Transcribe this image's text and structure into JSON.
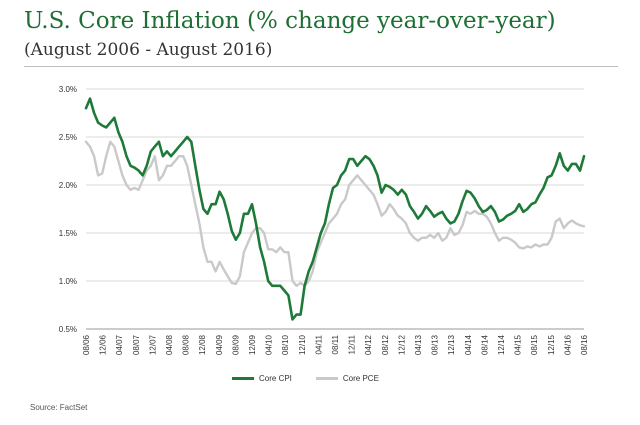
{
  "title": "U.S. Core Inflation (% change year-over-year)",
  "subtitle": "(August 2006 - August 2016)",
  "source": "Source: FactSet",
  "chart_data": {
    "type": "line",
    "ylim": [
      0.5,
      3.0
    ],
    "yticks": [
      "3.0%",
      "2.5%",
      "2.0%",
      "1.5%",
      "1.0%",
      "0.5%"
    ],
    "ytick_values": [
      3.0,
      2.5,
      2.0,
      1.5,
      1.0,
      0.5
    ],
    "grid": true,
    "legend": "bottom",
    "x_ticks": [
      "08/06",
      "12/06",
      "04/07",
      "08/07",
      "12/07",
      "04/08",
      "08/08",
      "12/08",
      "04/09",
      "08/09",
      "12/09",
      "04/10",
      "08/10",
      "12/10",
      "04/11",
      "08/11",
      "12/11",
      "04/12",
      "08/12",
      "12/12",
      "04/13",
      "08/13",
      "12/13",
      "04/14",
      "08/14",
      "12/14",
      "04/15",
      "08/15",
      "12/15",
      "04/16",
      "08/16"
    ],
    "series": [
      {
        "name": "Core CPI",
        "color": "#1f7a3a",
        "values": [
          2.8,
          2.9,
          2.75,
          2.65,
          2.62,
          2.6,
          2.65,
          2.7,
          2.55,
          2.45,
          2.3,
          2.2,
          2.18,
          2.15,
          2.1,
          2.2,
          2.35,
          2.4,
          2.45,
          2.3,
          2.35,
          2.3,
          2.35,
          2.4,
          2.45,
          2.5,
          2.45,
          2.2,
          1.95,
          1.75,
          1.7,
          1.8,
          1.8,
          1.93,
          1.85,
          1.7,
          1.52,
          1.43,
          1.5,
          1.7,
          1.7,
          1.8,
          1.6,
          1.35,
          1.2,
          1.0,
          0.95,
          0.95,
          0.95,
          0.9,
          0.85,
          0.6,
          0.65,
          0.65,
          0.95,
          1.1,
          1.2,
          1.35,
          1.5,
          1.6,
          1.8,
          1.97,
          2.0,
          2.1,
          2.15,
          2.27,
          2.27,
          2.2,
          2.25,
          2.3,
          2.27,
          2.2,
          2.1,
          1.92,
          2.0,
          1.98,
          1.95,
          1.9,
          1.95,
          1.9,
          1.78,
          1.72,
          1.65,
          1.7,
          1.78,
          1.73,
          1.67,
          1.7,
          1.72,
          1.65,
          1.6,
          1.62,
          1.7,
          1.83,
          1.94,
          1.92,
          1.86,
          1.78,
          1.72,
          1.74,
          1.78,
          1.72,
          1.62,
          1.64,
          1.68,
          1.7,
          1.73,
          1.8,
          1.72,
          1.75,
          1.8,
          1.82,
          1.9,
          1.97,
          2.08,
          2.1,
          2.2,
          2.33,
          2.2,
          2.15,
          2.22,
          2.22,
          2.15,
          2.3
        ]
      },
      {
        "name": "Core PCE",
        "color": "#c9c9c9",
        "values": [
          2.45,
          2.4,
          2.3,
          2.1,
          2.12,
          2.3,
          2.45,
          2.4,
          2.25,
          2.1,
          2.0,
          1.95,
          1.97,
          1.95,
          2.05,
          2.15,
          2.2,
          2.3,
          2.05,
          2.1,
          2.2,
          2.2,
          2.25,
          2.3,
          2.3,
          2.2,
          2.0,
          1.8,
          1.6,
          1.35,
          1.2,
          1.2,
          1.1,
          1.2,
          1.12,
          1.05,
          0.98,
          0.97,
          1.05,
          1.3,
          1.4,
          1.5,
          1.55,
          1.55,
          1.5,
          1.33,
          1.33,
          1.3,
          1.35,
          1.3,
          1.3,
          1.0,
          0.95,
          0.98,
          0.95,
          1.0,
          1.1,
          1.3,
          1.4,
          1.5,
          1.6,
          1.65,
          1.7,
          1.8,
          1.85,
          2.0,
          2.05,
          2.1,
          2.05,
          2.0,
          1.95,
          1.9,
          1.8,
          1.68,
          1.72,
          1.8,
          1.75,
          1.68,
          1.65,
          1.6,
          1.5,
          1.45,
          1.42,
          1.45,
          1.45,
          1.48,
          1.45,
          1.5,
          1.42,
          1.45,
          1.55,
          1.48,
          1.5,
          1.58,
          1.72,
          1.7,
          1.73,
          1.7,
          1.7,
          1.67,
          1.6,
          1.5,
          1.42,
          1.45,
          1.45,
          1.43,
          1.4,
          1.35,
          1.34,
          1.36,
          1.35,
          1.38,
          1.36,
          1.38,
          1.38,
          1.45,
          1.62,
          1.65,
          1.55,
          1.6,
          1.63,
          1.6,
          1.58,
          1.57
        ]
      }
    ]
  }
}
